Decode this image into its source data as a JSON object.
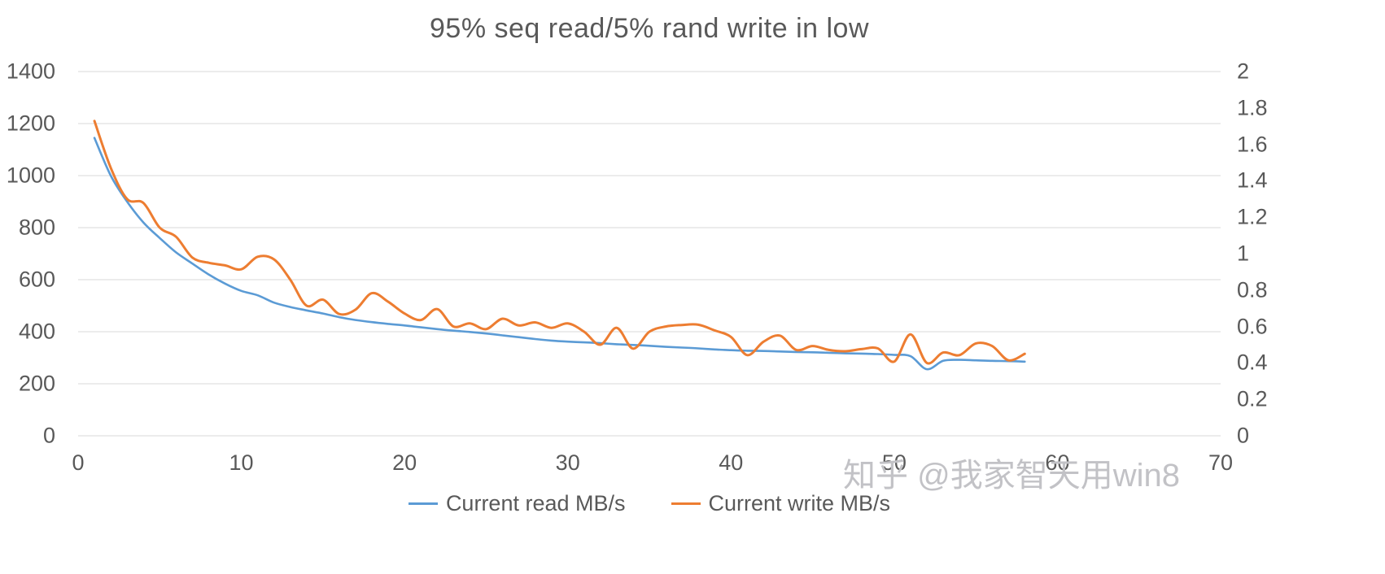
{
  "watermark": "知乎 @我家智天用win8",
  "colors": {
    "grid": "#d9d9d9",
    "axis_text": "#595959",
    "title_text": "#595959"
  },
  "chart_data": {
    "type": "line",
    "title": "95% seq read/5% rand write in low",
    "grid": true,
    "legend_position": "bottom",
    "xlim": [
      0,
      70
    ],
    "x_ticks": [
      0,
      10,
      20,
      30,
      40,
      50,
      60,
      70
    ],
    "ylim_left": [
      0,
      1400
    ],
    "y_ticks_left": [
      0,
      200,
      400,
      600,
      800,
      1000,
      1200,
      1400
    ],
    "ylim_right": [
      0,
      2
    ],
    "y_ticks_right": [
      0,
      0.2,
      0.4,
      0.6,
      0.8,
      1,
      1.2,
      1.4,
      1.6,
      1.8,
      2
    ],
    "x": [
      1,
      2,
      3,
      4,
      5,
      6,
      7,
      8,
      9,
      10,
      11,
      12,
      13,
      14,
      15,
      16,
      17,
      18,
      19,
      20,
      21,
      22,
      23,
      24,
      25,
      26,
      27,
      28,
      29,
      30,
      31,
      32,
      33,
      34,
      35,
      36,
      37,
      38,
      39,
      40,
      41,
      42,
      43,
      44,
      45,
      46,
      47,
      48,
      49,
      50,
      51,
      52,
      53,
      54,
      55,
      56,
      57,
      58
    ],
    "series": [
      {
        "name": "Current read MB/s",
        "color": "#5B9BD5",
        "axis": "left",
        "values": [
          1145,
          1000,
          900,
          820,
          760,
          705,
          662,
          620,
          585,
          557,
          540,
          512,
          495,
          482,
          470,
          456,
          445,
          437,
          430,
          424,
          417,
          410,
          404,
          399,
          393,
          386,
          379,
          372,
          366,
          362,
          359,
          356,
          352,
          349,
          346,
          342,
          339,
          336,
          332,
          329,
          327,
          326,
          324,
          322,
          321,
          319,
          317,
          316,
          314,
          311,
          306,
          256,
          288,
          292,
          290,
          288,
          287,
          285
        ]
      },
      {
        "name": "Current write MB/s",
        "color": "#ED7D31",
        "axis": "left",
        "values": [
          1210,
          1030,
          910,
          895,
          800,
          765,
          685,
          665,
          655,
          640,
          688,
          678,
          600,
          500,
          523,
          468,
          485,
          548,
          515,
          470,
          445,
          487,
          420,
          432,
          410,
          450,
          424,
          436,
          415,
          432,
          400,
          350,
          415,
          335,
          400,
          420,
          426,
          427,
          405,
          380,
          310,
          362,
          385,
          330,
          345,
          330,
          325,
          333,
          336,
          285,
          390,
          280,
          320,
          310,
          355,
          345,
          290,
          315
        ]
      }
    ]
  }
}
